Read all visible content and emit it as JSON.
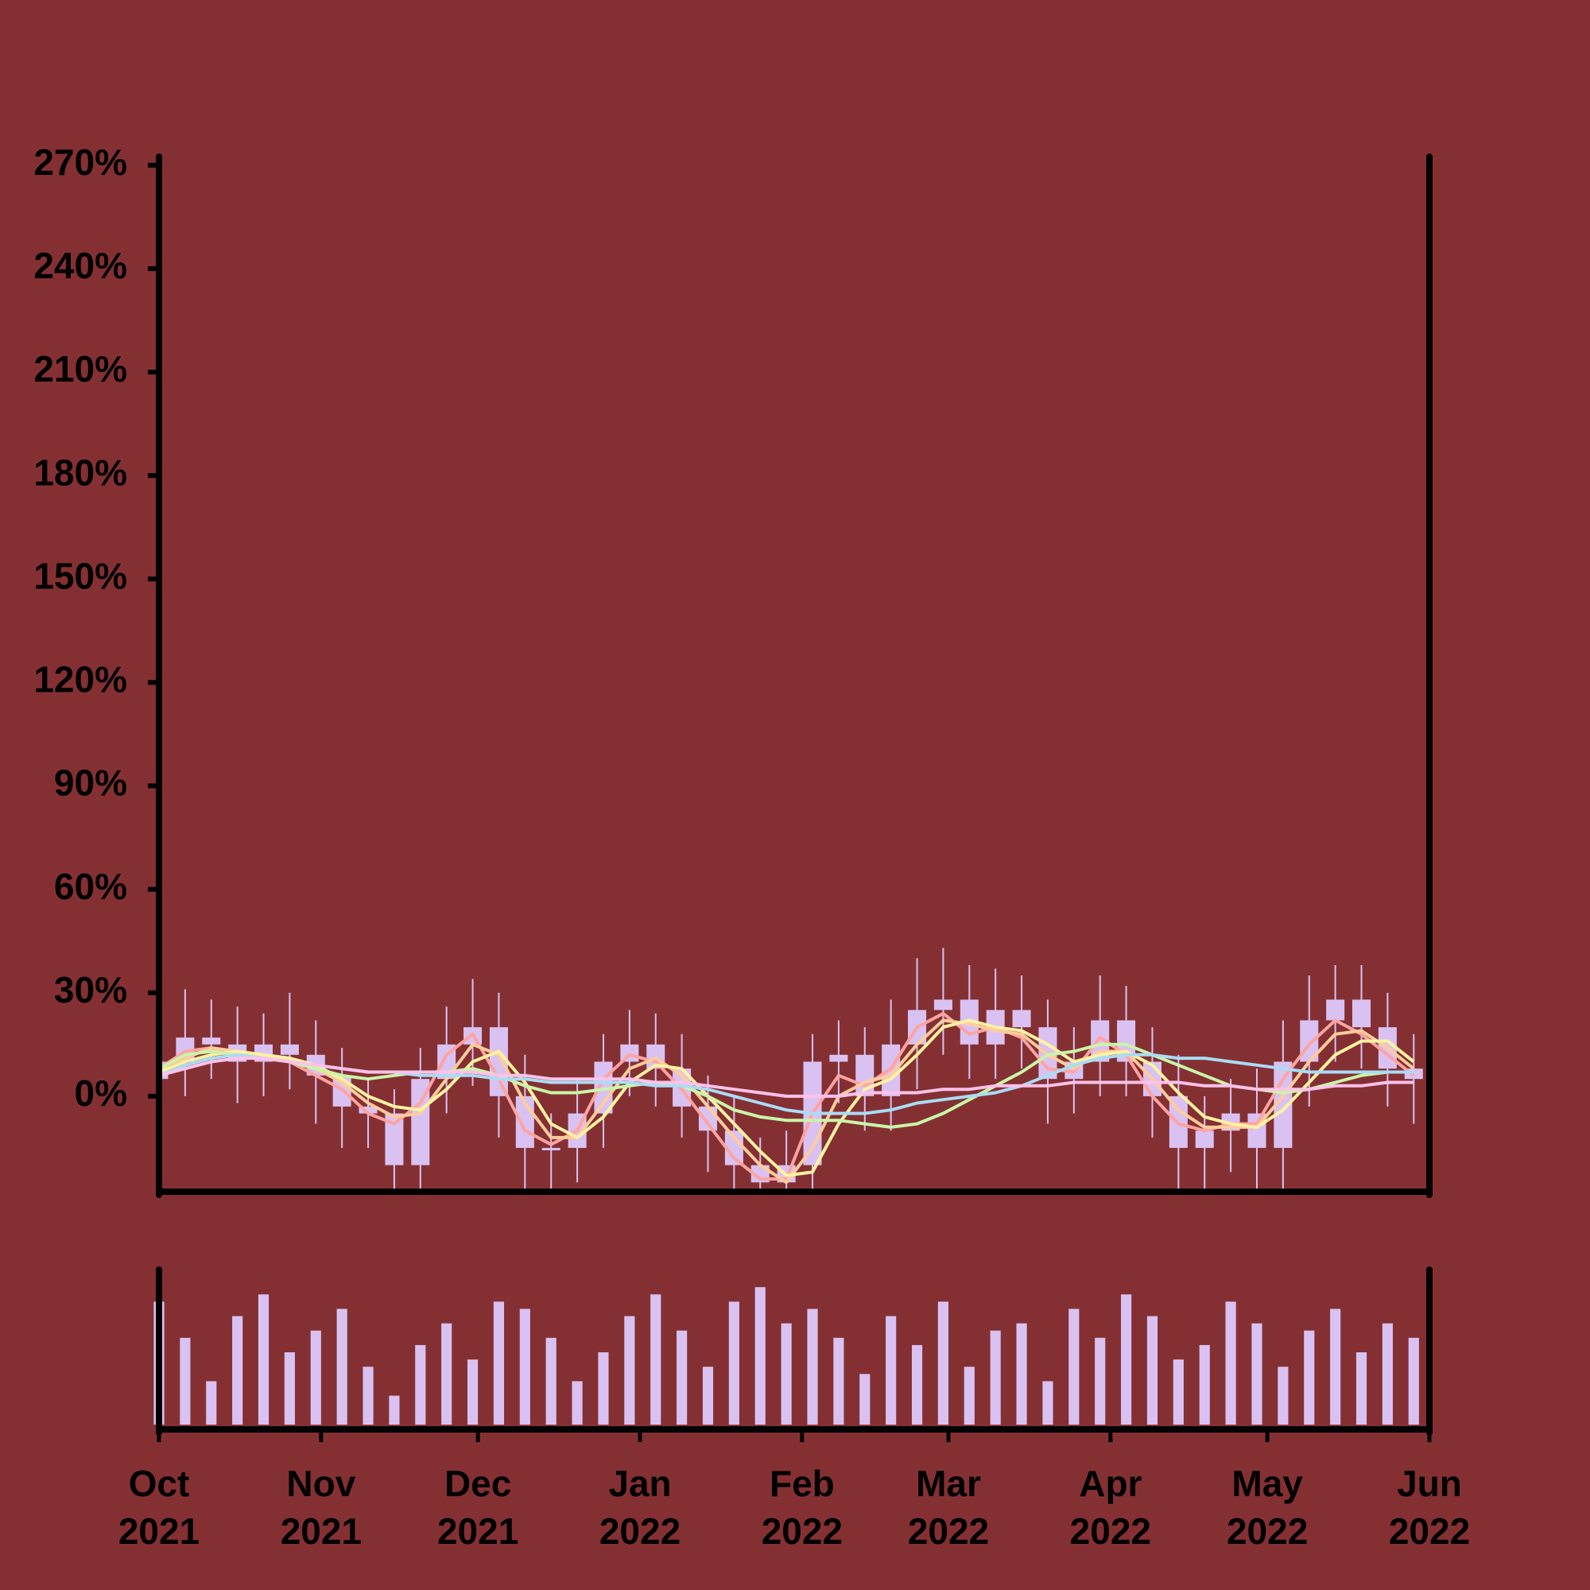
{
  "chart_data": {
    "type": "candlestick",
    "x": [
      0,
      5,
      10,
      15,
      20,
      25,
      30,
      35,
      40,
      45,
      50,
      55,
      60,
      65,
      70,
      75,
      80,
      85,
      90,
      95,
      100,
      105,
      110,
      115,
      120,
      125,
      130,
      135,
      140,
      145,
      150,
      155,
      160,
      165,
      170,
      175,
      180,
      185,
      190,
      195,
      200,
      205,
      210,
      215,
      220,
      225,
      230,
      235,
      240
    ],
    "open": [
      5,
      10,
      17,
      15,
      10,
      15,
      12,
      6,
      -3,
      -5,
      -20,
      5,
      15,
      20,
      0,
      -15,
      -15,
      -5,
      10,
      15,
      8,
      -3,
      -10,
      -20,
      -25,
      -20,
      10,
      12,
      0,
      15,
      25,
      28,
      15,
      25,
      20,
      5,
      10,
      22,
      10,
      0,
      -15,
      -10,
      -5,
      -15,
      10,
      22,
      28,
      20,
      8
    ],
    "high": [
      22,
      31,
      28,
      26,
      24,
      30,
      22,
      14,
      5,
      2,
      14,
      26,
      34,
      30,
      12,
      -5,
      5,
      18,
      25,
      24,
      18,
      6,
      0,
      -12,
      -10,
      18,
      22,
      20,
      28,
      40,
      43,
      38,
      37,
      35,
      28,
      20,
      35,
      32,
      20,
      12,
      0,
      5,
      8,
      22,
      35,
      38,
      38,
      30,
      18
    ],
    "low": [
      -3,
      0,
      5,
      -2,
      0,
      2,
      -8,
      -15,
      -15,
      -32,
      -30,
      -5,
      3,
      -12,
      -28,
      -28,
      -25,
      -15,
      0,
      -3,
      -12,
      -22,
      -32,
      -35,
      -35,
      -30,
      -2,
      -10,
      -10,
      2,
      12,
      5,
      5,
      8,
      -8,
      -5,
      0,
      0,
      -12,
      -28,
      -28,
      -22,
      -28,
      -28,
      -3,
      10,
      8,
      -3,
      -8
    ],
    "close": [
      10,
      17,
      15,
      10,
      15,
      12,
      6,
      -3,
      -5,
      -20,
      5,
      15,
      20,
      0,
      -15,
      -15,
      -5,
      10,
      15,
      8,
      -3,
      -10,
      -20,
      -25,
      -20,
      10,
      12,
      0,
      15,
      25,
      28,
      15,
      25,
      20,
      5,
      10,
      22,
      10,
      0,
      -15,
      -10,
      -5,
      -15,
      10,
      22,
      28,
      20,
      8,
      5
    ],
    "volume": [
      85,
      60,
      30,
      75,
      90,
      50,
      65,
      80,
      40,
      20,
      55,
      70,
      45,
      85,
      80,
      60,
      30,
      50,
      75,
      90,
      65,
      40,
      85,
      95,
      70,
      80,
      60,
      35,
      75,
      55,
      85,
      40,
      65,
      70,
      30,
      80,
      60,
      90,
      75,
      45,
      55,
      85,
      70,
      40,
      65,
      80,
      50,
      70,
      60
    ],
    "candle_color": "#d9c2f2",
    "series": [
      {
        "color": "#ffa3a0",
        "values": [
          8,
          13,
          14,
          12,
          12,
          10,
          6,
          2,
          -5,
          -8,
          -2,
          12,
          18,
          5,
          -10,
          -14,
          -10,
          5,
          12,
          10,
          2,
          -8,
          -18,
          -24,
          -24,
          -5,
          6,
          3,
          8,
          20,
          24,
          18,
          20,
          17,
          8,
          7,
          17,
          12,
          0,
          -8,
          -10,
          -8,
          -8,
          5,
          15,
          22,
          18,
          12,
          6
        ]
      },
      {
        "color": "#ffcc9c",
        "values": [
          8,
          11,
          14,
          13,
          12,
          11,
          8,
          4,
          -2,
          -6,
          -5,
          5,
          15,
          12,
          -2,
          -12,
          -12,
          -2,
          8,
          11,
          6,
          -3,
          -12,
          -20,
          -25,
          -15,
          0,
          4,
          6,
          15,
          22,
          21,
          19,
          18,
          12,
          8,
          13,
          13,
          5,
          -4,
          -9,
          -9,
          -9,
          0,
          10,
          18,
          19,
          14,
          8
        ]
      },
      {
        "color": "#fff2a2",
        "values": [
          7,
          10,
          12,
          13,
          12,
          11,
          9,
          5,
          0,
          -3,
          -4,
          2,
          10,
          13,
          4,
          -8,
          -12,
          -6,
          4,
          9,
          8,
          0,
          -8,
          -16,
          -23,
          -22,
          -8,
          2,
          5,
          12,
          20,
          22,
          20,
          19,
          15,
          10,
          12,
          13,
          9,
          1,
          -6,
          -8,
          -9,
          -4,
          4,
          12,
          16,
          16,
          10
        ]
      },
      {
        "color": "#c9f5a8",
        "values": [
          8,
          12,
          13,
          12,
          11,
          10,
          8,
          6,
          5,
          6,
          7,
          7,
          8,
          6,
          3,
          1,
          1,
          2,
          3,
          4,
          3,
          0,
          -4,
          -6,
          -7,
          -7,
          -7,
          -8,
          -9,
          -8,
          -5,
          -1,
          3,
          7,
          12,
          13,
          15,
          15,
          12,
          9,
          6,
          3,
          2,
          1,
          2,
          4,
          6,
          7,
          7
        ]
      },
      {
        "color": "#a9dcf5",
        "values": [
          6,
          9,
          11,
          12,
          11,
          10,
          9,
          8,
          7,
          7,
          6,
          6,
          6,
          5,
          5,
          4,
          4,
          4,
          4,
          3,
          3,
          2,
          0,
          -2,
          -4,
          -5,
          -5,
          -5,
          -4,
          -2,
          -1,
          0,
          1,
          3,
          6,
          9,
          11,
          12,
          12,
          11,
          11,
          10,
          9,
          8,
          7,
          7,
          7,
          7,
          7
        ]
      },
      {
        "color": "#ffc2ea",
        "values": [
          6,
          8,
          10,
          11,
          11,
          10,
          9,
          8,
          7,
          7,
          7,
          7,
          7,
          6,
          6,
          5,
          5,
          5,
          5,
          4,
          4,
          3,
          2,
          1,
          0,
          0,
          0,
          1,
          1,
          1,
          2,
          2,
          3,
          3,
          3,
          4,
          4,
          4,
          4,
          4,
          3,
          3,
          2,
          2,
          2,
          3,
          3,
          4,
          4
        ]
      }
    ],
    "xlim": [
      0,
      243
    ],
    "xticks": [
      {
        "value": 0,
        "label": "Oct 2021"
      },
      {
        "value": 31,
        "label": "Nov 2021"
      },
      {
        "value": 61,
        "label": "Dec 2021"
      },
      {
        "value": 92,
        "label": "Jan 2022"
      },
      {
        "value": 123,
        "label": "Feb 2022"
      },
      {
        "value": 151,
        "label": "Mar 2022"
      },
      {
        "value": 182,
        "label": "Apr 2022"
      },
      {
        "value": 212,
        "label": "May 2022"
      },
      {
        "value": 243,
        "label": "Jun 2022"
      }
    ],
    "ylim": [
      -27.7,
      271.8
    ],
    "yticks": [
      {
        "value": 0,
        "label": "0%"
      },
      {
        "value": 30,
        "label": "30%"
      },
      {
        "value": 60,
        "label": "60%"
      },
      {
        "value": 90,
        "label": "90%"
      },
      {
        "value": 120,
        "label": "120%"
      },
      {
        "value": 150,
        "label": "150%"
      },
      {
        "value": 180,
        "label": "180%"
      },
      {
        "value": 210,
        "label": "210%"
      },
      {
        "value": 240,
        "label": "240%"
      },
      {
        "value": 270,
        "label": "270%"
      }
    ],
    "volume_ylim": [
      0,
      100
    ]
  }
}
